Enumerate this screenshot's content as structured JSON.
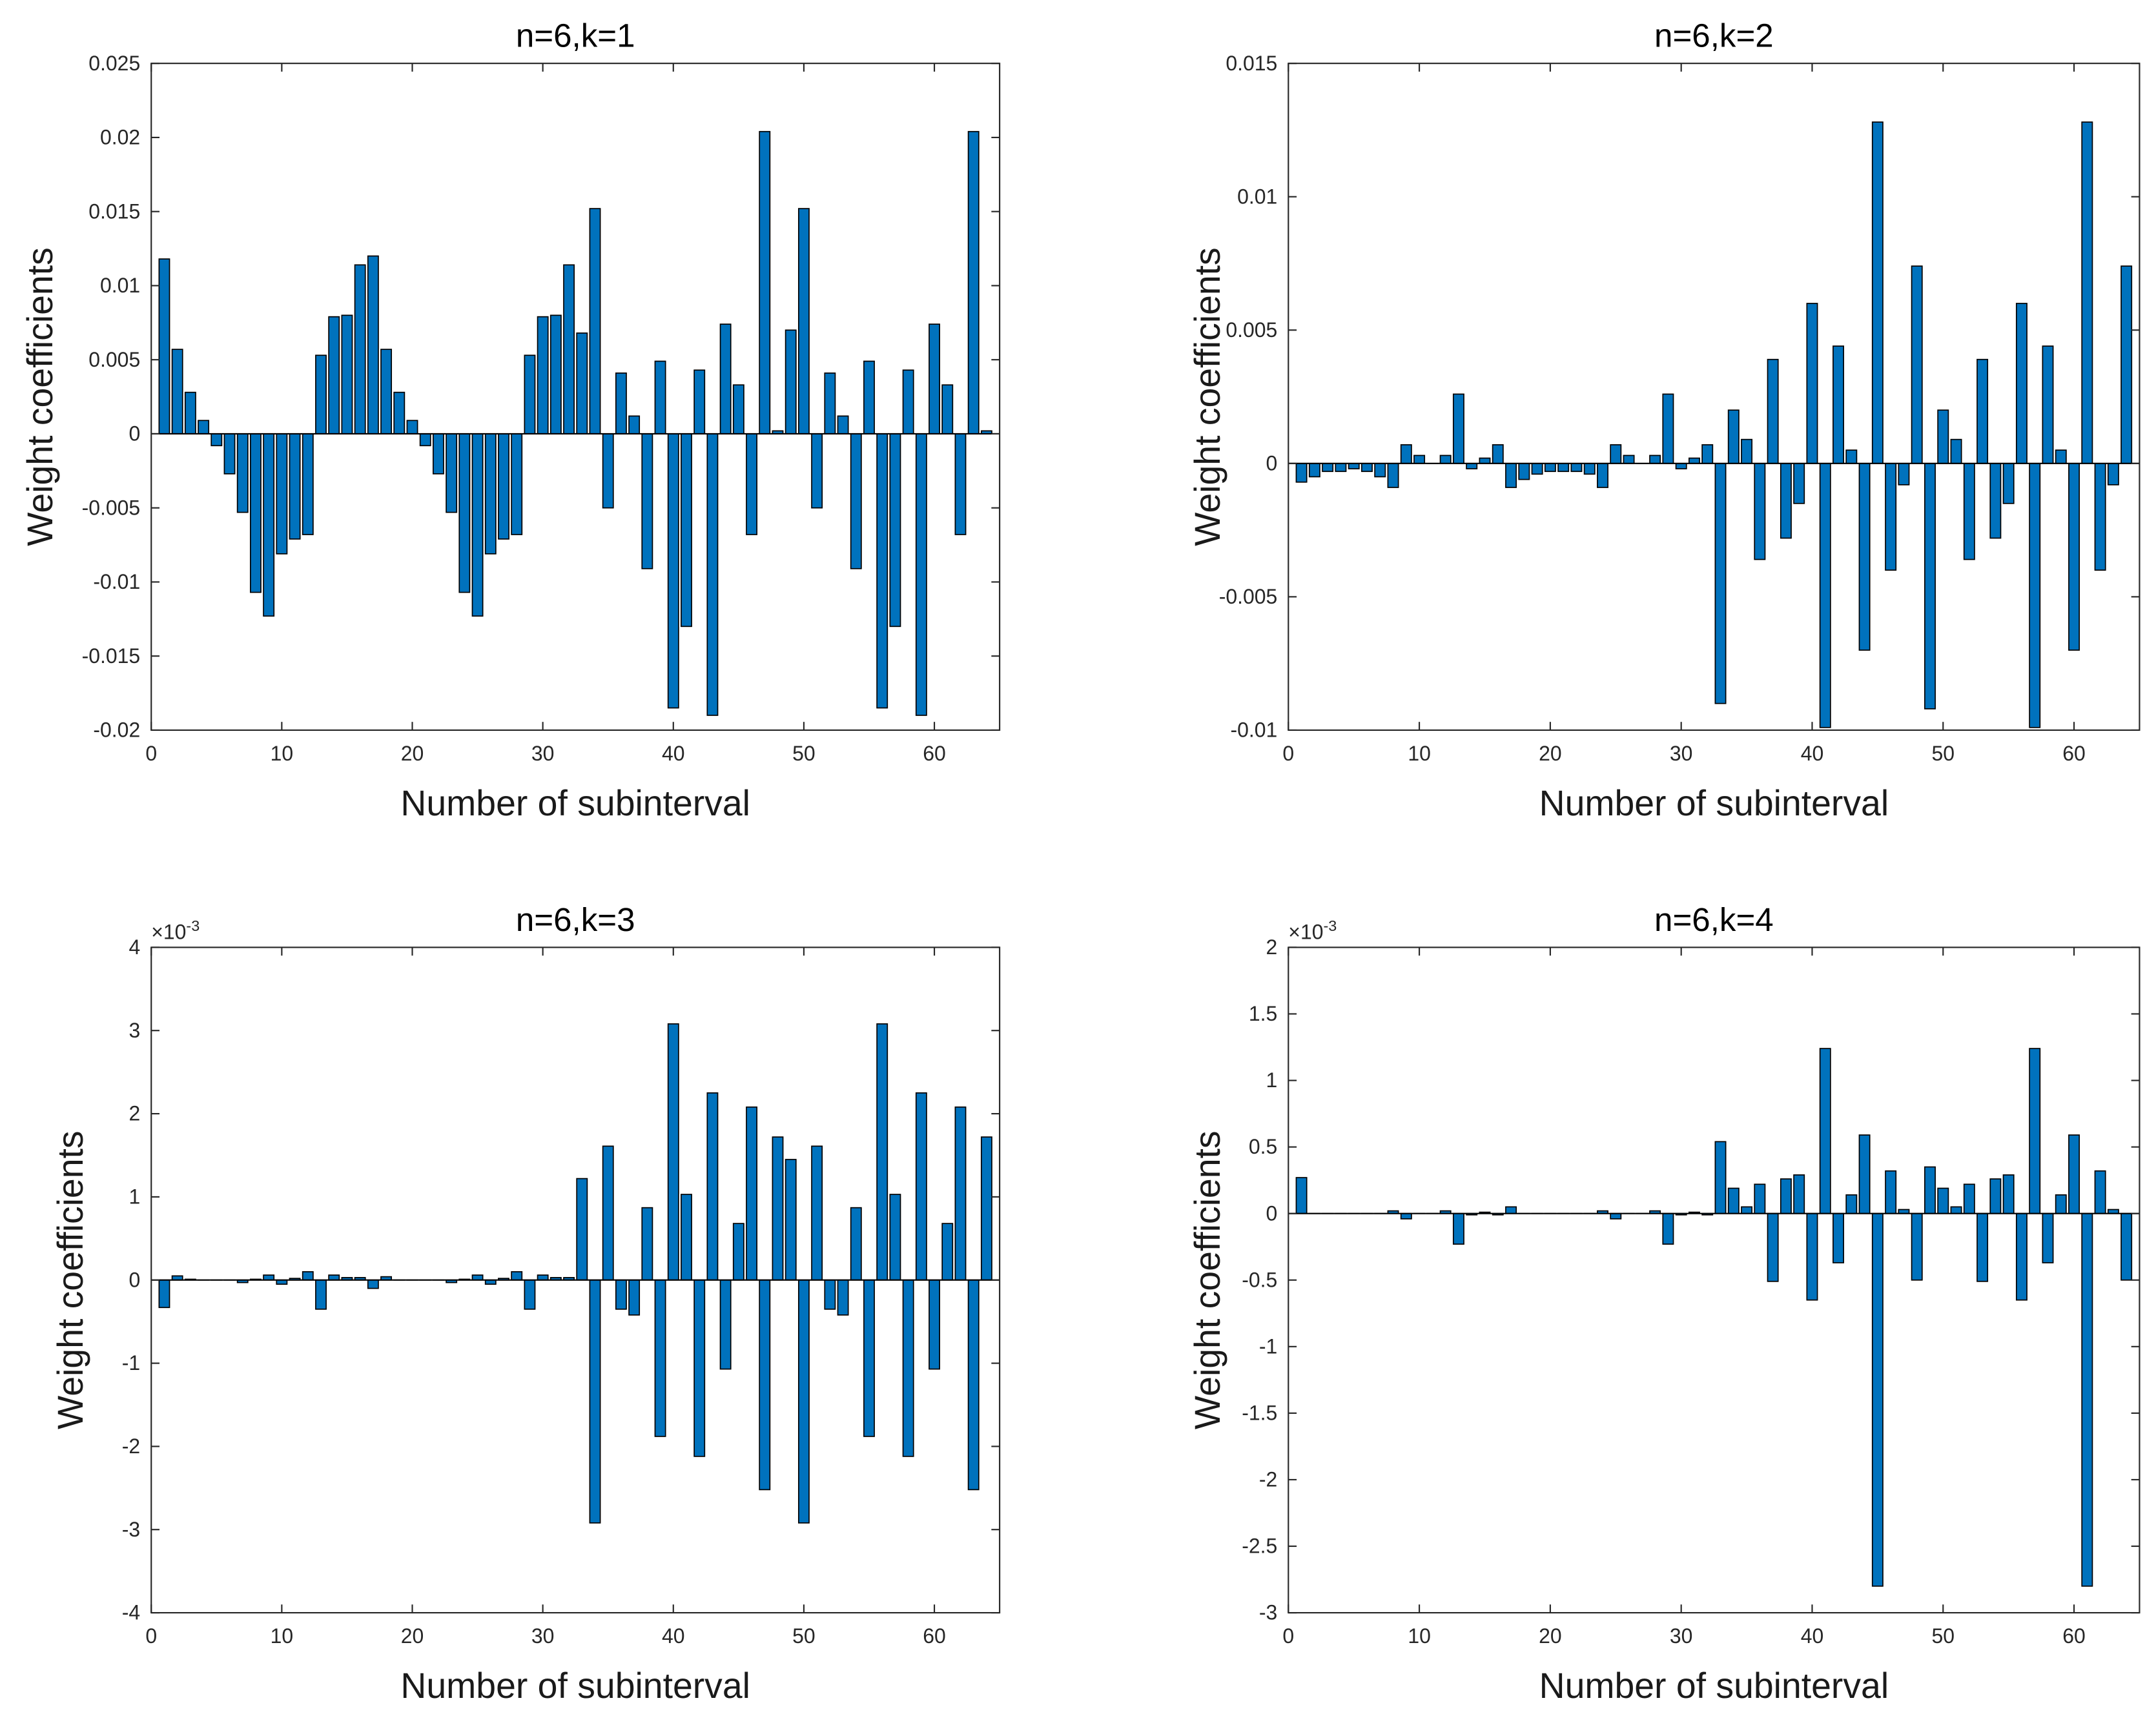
{
  "chart_data": [
    {
      "type": "bar",
      "title": "n=6,k=1",
      "xlabel": "Number of subinterval",
      "ylabel": "Weight coefficients",
      "color": "#0072bd",
      "x": [
        1,
        2,
        3,
        4,
        5,
        6,
        7,
        8,
        9,
        10,
        11,
        12,
        13,
        14,
        15,
        16,
        17,
        18,
        19,
        20,
        21,
        22,
        23,
        24,
        25,
        26,
        27,
        28,
        29,
        30,
        31,
        32,
        33,
        34,
        35,
        36,
        37,
        38,
        39,
        40,
        41,
        42,
        43,
        44,
        45,
        46,
        47,
        48,
        49,
        50,
        51,
        52,
        53,
        54,
        55,
        56,
        57,
        58,
        59,
        60,
        61,
        62,
        63,
        64
      ],
      "values": [
        0.0118,
        0.0057,
        0.0028,
        0.0009,
        -0.0008,
        -0.0027,
        -0.0053,
        -0.0107,
        -0.0123,
        -0.0081,
        -0.0071,
        -0.0068,
        0.0053,
        0.0079,
        0.008,
        0.0114,
        0.012,
        0.0057,
        0.0028,
        0.0009,
        -0.0008,
        -0.0027,
        -0.0053,
        -0.0107,
        -0.0123,
        -0.0081,
        -0.0071,
        -0.0068,
        0.0053,
        0.0079,
        0.008,
        0.0114,
        0.0068,
        0.0152,
        -0.005,
        0.0041,
        0.0012,
        -0.0091,
        0.0049,
        -0.0185,
        -0.013,
        0.0043,
        -0.019,
        0.0074,
        0.0033,
        -0.0068,
        0.0204,
        0.0002,
        0.007,
        0.0152,
        -0.005,
        0.0041,
        0.0012,
        -0.0091,
        0.0049,
        -0.0185,
        -0.013,
        0.0043,
        -0.019,
        0.0074,
        0.0033,
        -0.0068,
        0.0204,
        0.0002
      ],
      "xlim": [
        0,
        65
      ],
      "xticks": [
        0,
        10,
        20,
        30,
        40,
        50,
        60
      ],
      "ylim": [
        -0.02,
        0.025
      ],
      "yticks": [
        -0.02,
        -0.015,
        -0.01,
        -0.005,
        0,
        0.005,
        0.01,
        0.015,
        0.02,
        0.025
      ]
    },
    {
      "type": "bar",
      "title": "n=6,k=2",
      "xlabel": "Number of subinterval",
      "ylabel": "Weight coefficients",
      "color": "#0072bd",
      "x": [
        1,
        2,
        3,
        4,
        5,
        6,
        7,
        8,
        9,
        10,
        11,
        12,
        13,
        14,
        15,
        16,
        17,
        18,
        19,
        20,
        21,
        22,
        23,
        24,
        25,
        26,
        27,
        28,
        29,
        30,
        31,
        32,
        33,
        34,
        35,
        36,
        37,
        38,
        39,
        40,
        41,
        42,
        43,
        44,
        45,
        46,
        47,
        48,
        49,
        50,
        51,
        52,
        53,
        54,
        55,
        56,
        57,
        58,
        59,
        60,
        61,
        62,
        63,
        64
      ],
      "values": [
        -0.0007,
        -0.0005,
        -0.0003,
        -0.0003,
        -0.0002,
        -0.0003,
        -0.0005,
        -0.0009,
        0.0007,
        0.0003,
        0,
        0.0003,
        0.0026,
        -0.0002,
        0.0002,
        0.0007,
        -0.0009,
        -0.0006,
        -0.0004,
        -0.0003,
        -0.0003,
        -0.0003,
        -0.0004,
        -0.0009,
        0.0007,
        0.0003,
        0,
        0.0003,
        0.0026,
        -0.0002,
        0.0002,
        0.0007,
        -0.009,
        0.002,
        0.0009,
        -0.0036,
        0.0039,
        -0.0028,
        -0.0015,
        0.006,
        -0.0099,
        0.0044,
        0.0005,
        -0.007,
        0.0128,
        -0.004,
        -0.0008,
        0.0074,
        -0.0092,
        0.002,
        0.0009,
        -0.0036,
        0.0039,
        -0.0028,
        -0.0015,
        0.006,
        -0.0099,
        0.0044,
        0.0005,
        -0.007,
        0.0128,
        -0.004,
        -0.0008,
        0.0074
      ],
      "xlim": [
        0,
        65
      ],
      "xticks": [
        0,
        10,
        20,
        30,
        40,
        50,
        60
      ],
      "ylim": [
        -0.01,
        0.015
      ],
      "yticks": [
        -0.01,
        -0.005,
        0,
        0.005,
        0.01,
        0.015
      ]
    },
    {
      "type": "bar",
      "title": "n=6,k=3",
      "xlabel": "Number of subinterval",
      "ylabel": "Weight coefficients",
      "color": "#0072bd",
      "axis_multiplier": {
        "base": "×10",
        "exponent": "-3"
      },
      "x": [
        1,
        2,
        3,
        4,
        5,
        6,
        7,
        8,
        9,
        10,
        11,
        12,
        13,
        14,
        15,
        16,
        17,
        18,
        19,
        20,
        21,
        22,
        23,
        24,
        25,
        26,
        27,
        28,
        29,
        30,
        31,
        32,
        33,
        34,
        35,
        36,
        37,
        38,
        39,
        40,
        41,
        42,
        43,
        44,
        45,
        46,
        47,
        48,
        49,
        50,
        51,
        52,
        53,
        54,
        55,
        56,
        57,
        58,
        59,
        60,
        61,
        62,
        63,
        64
      ],
      "values": [
        -0.33,
        0.05,
        0.01,
        0,
        0,
        0,
        -0.03,
        0.01,
        0.06,
        -0.05,
        0.02,
        0.1,
        -0.35,
        0.06,
        0.03,
        0.03,
        -0.1,
        0.04,
        0,
        0,
        0,
        0,
        -0.03,
        0.01,
        0.06,
        -0.05,
        0.02,
        0.1,
        -0.35,
        0.06,
        0.03,
        0.03,
        1.22,
        -2.92,
        1.61,
        -0.35,
        -0.42,
        0.87,
        -1.88,
        3.08,
        1.03,
        -2.12,
        2.25,
        -1.07,
        0.68,
        2.08,
        -2.52,
        1.72,
        1.45,
        -2.92,
        1.61,
        -0.35,
        -0.42,
        0.87,
        -1.88,
        3.08,
        1.03,
        -2.12,
        2.25,
        -1.07,
        0.68,
        2.08,
        -2.52,
        1.72
      ],
      "xlim": [
        0,
        65
      ],
      "xticks": [
        0,
        10,
        20,
        30,
        40,
        50,
        60
      ],
      "ylim": [
        -4,
        4
      ],
      "yticks": [
        -4,
        -3,
        -2,
        -1,
        0,
        1,
        2,
        3,
        4
      ]
    },
    {
      "type": "bar",
      "title": "n=6,k=4",
      "xlabel": "Number of subinterval",
      "ylabel": "Weight coefficients",
      "color": "#0072bd",
      "axis_multiplier": {
        "base": "×10",
        "exponent": "-3"
      },
      "x": [
        1,
        2,
        3,
        4,
        5,
        6,
        7,
        8,
        9,
        10,
        11,
        12,
        13,
        14,
        15,
        16,
        17,
        18,
        19,
        20,
        21,
        22,
        23,
        24,
        25,
        26,
        27,
        28,
        29,
        30,
        31,
        32,
        33,
        34,
        35,
        36,
        37,
        38,
        39,
        40,
        41,
        42,
        43,
        44,
        45,
        46,
        47,
        48,
        49,
        50,
        51,
        52,
        53,
        54,
        55,
        56,
        57,
        58,
        59,
        60,
        61,
        62,
        63,
        64
      ],
      "values": [
        0.27,
        0,
        0,
        0,
        0,
        0,
        0,
        0.02,
        -0.04,
        0,
        0,
        0.02,
        -0.23,
        -0.01,
        0.01,
        -0.01,
        0.05,
        0,
        0,
        0,
        0,
        0,
        0,
        0.02,
        -0.04,
        0,
        0,
        0.02,
        -0.23,
        -0.01,
        0.01,
        -0.01,
        0.54,
        0.19,
        0.05,
        0.22,
        -0.51,
        0.26,
        0.29,
        -0.65,
        1.24,
        -0.37,
        0.14,
        0.59,
        -2.8,
        0.32,
        0.03,
        -0.5,
        0.35,
        0.19,
        0.05,
        0.22,
        -0.51,
        0.26,
        0.29,
        -0.65,
        1.24,
        -0.37,
        0.14,
        0.59,
        -2.8,
        0.32,
        0.03,
        -0.5
      ],
      "xlim": [
        0,
        65
      ],
      "xticks": [
        0,
        10,
        20,
        30,
        40,
        50,
        60
      ],
      "ylim": [
        -3,
        2
      ],
      "yticks": [
        -3,
        -2.5,
        -2,
        -1.5,
        -1,
        -0.5,
        0,
        0.5,
        1,
        1.5,
        2
      ]
    }
  ]
}
